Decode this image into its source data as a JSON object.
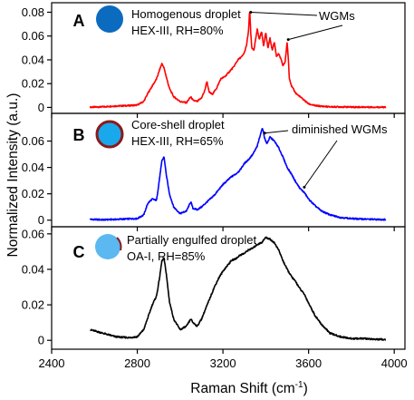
{
  "chart_data": {
    "type": "line",
    "xlabel": "Raman Shift (cm",
    "xlabel_sup": "-1",
    "xlabel_close": ")",
    "ylabel": "Normalized Intensity (a.u.)",
    "xlim": [
      2400,
      4050
    ],
    "x_ticks": [
      "2400",
      "2800",
      "3200",
      "3600",
      "4000"
    ],
    "panels": [
      {
        "letter": "A",
        "title": "Homogenous droplet",
        "subtitle": "HEX-III, RH=80%",
        "annotation": "WGMs",
        "color": "#ff0000",
        "droplet": {
          "fill": "#0a6bbf",
          "ring": ""
        },
        "ylim": [
          -0.005,
          0.088
        ],
        "y_ticks": [
          "0",
          "0.02",
          "0.04",
          "0.06",
          "0.08"
        ],
        "x": [
          2580,
          2640,
          2700,
          2760,
          2800,
          2830,
          2850,
          2870,
          2890,
          2905,
          2915,
          2925,
          2935,
          2950,
          2970,
          3000,
          3030,
          3050,
          3060,
          3080,
          3100,
          3115,
          3125,
          3135,
          3150,
          3170,
          3190,
          3210,
          3230,
          3250,
          3270,
          3290,
          3300,
          3310,
          3320,
          3325,
          3330,
          3335,
          3345,
          3360,
          3370,
          3380,
          3390,
          3400,
          3410,
          3420,
          3430,
          3440,
          3450,
          3460,
          3470,
          3480,
          3490,
          3495,
          3500,
          3505,
          3510,
          3520,
          3540,
          3560,
          3580,
          3600,
          3630,
          3660,
          3700,
          3750,
          3800,
          3860,
          3920,
          3960
        ],
        "y": [
          0.0002,
          0.0005,
          0.0012,
          0.0015,
          0.002,
          0.005,
          0.012,
          0.018,
          0.024,
          0.032,
          0.037,
          0.033,
          0.026,
          0.016,
          0.009,
          0.005,
          0.004,
          0.009,
          0.006,
          0.005,
          0.008,
          0.014,
          0.022,
          0.013,
          0.011,
          0.016,
          0.024,
          0.026,
          0.03,
          0.034,
          0.04,
          0.043,
          0.046,
          0.052,
          0.065,
          0.082,
          0.062,
          0.05,
          0.048,
          0.066,
          0.057,
          0.064,
          0.052,
          0.063,
          0.05,
          0.058,
          0.048,
          0.055,
          0.043,
          0.045,
          0.041,
          0.035,
          0.038,
          0.046,
          0.055,
          0.042,
          0.025,
          0.018,
          0.012,
          0.009,
          0.006,
          0.003,
          0.0015,
          0.001,
          0.0005,
          0.0005,
          0.0003,
          0.0003,
          0.0002,
          0.0002
        ]
      },
      {
        "letter": "B",
        "title": "Core-shell droplet",
        "subtitle": "HEX-III, RH=65%",
        "annotation": "diminished WGMs",
        "color": "#0000ff",
        "droplet": {
          "fill": "#1aa8ec",
          "ring": "#8b1a1a"
        },
        "ylim": [
          -0.005,
          0.081
        ],
        "y_ticks": [
          "0",
          "0.02",
          "0.04",
          "0.06"
        ],
        "x": [
          2580,
          2640,
          2700,
          2760,
          2800,
          2830,
          2850,
          2870,
          2890,
          2905,
          2915,
          2925,
          2935,
          2950,
          2970,
          3000,
          3030,
          3050,
          3060,
          3080,
          3100,
          3120,
          3140,
          3160,
          3180,
          3200,
          3220,
          3240,
          3260,
          3280,
          3300,
          3320,
          3340,
          3360,
          3375,
          3385,
          3395,
          3405,
          3420,
          3440,
          3460,
          3480,
          3500,
          3520,
          3540,
          3560,
          3580,
          3600,
          3630,
          3660,
          3700,
          3750,
          3800,
          3860,
          3920,
          3960
        ],
        "y": [
          0.0006,
          0.0003,
          0.0006,
          0.001,
          0.0012,
          0.004,
          0.013,
          0.016,
          0.015,
          0.033,
          0.045,
          0.048,
          0.035,
          0.02,
          0.01,
          0.005,
          0.007,
          0.014,
          0.009,
          0.008,
          0.01,
          0.013,
          0.016,
          0.019,
          0.023,
          0.027,
          0.03,
          0.033,
          0.035,
          0.038,
          0.043,
          0.046,
          0.05,
          0.056,
          0.065,
          0.07,
          0.062,
          0.058,
          0.063,
          0.06,
          0.055,
          0.048,
          0.04,
          0.035,
          0.029,
          0.024,
          0.021,
          0.016,
          0.011,
          0.007,
          0.004,
          0.002,
          0.0012,
          0.0008,
          0.0005,
          0.0005
        ]
      },
      {
        "letter": "C",
        "title": "Partially engulfed droplet",
        "subtitle": "OA-I, RH=85%",
        "annotation": "",
        "color": "#000000",
        "droplet": {
          "fill": "#5bb8f0",
          "ring": ""
        },
        "ylim": [
          -0.005,
          0.064
        ],
        "y_ticks": [
          "0",
          "0.02",
          "0.04",
          "0.06"
        ],
        "x": [
          2580,
          2640,
          2700,
          2760,
          2800,
          2830,
          2850,
          2870,
          2890,
          2905,
          2915,
          2925,
          2935,
          2950,
          2970,
          3000,
          3030,
          3050,
          3060,
          3080,
          3100,
          3120,
          3140,
          3160,
          3180,
          3200,
          3220,
          3240,
          3260,
          3280,
          3300,
          3320,
          3340,
          3360,
          3380,
          3400,
          3420,
          3440,
          3460,
          3480,
          3500,
          3520,
          3540,
          3560,
          3580,
          3600,
          3630,
          3660,
          3700,
          3750,
          3800,
          3860,
          3920,
          3960
        ],
        "y": [
          0.006,
          0.004,
          0.002,
          0.0015,
          0.002,
          0.006,
          0.013,
          0.02,
          0.025,
          0.036,
          0.045,
          0.046,
          0.038,
          0.022,
          0.012,
          0.006,
          0.008,
          0.012,
          0.01,
          0.008,
          0.012,
          0.018,
          0.024,
          0.03,
          0.035,
          0.039,
          0.042,
          0.045,
          0.046,
          0.048,
          0.049,
          0.051,
          0.052,
          0.054,
          0.055,
          0.058,
          0.057,
          0.055,
          0.051,
          0.045,
          0.04,
          0.036,
          0.033,
          0.029,
          0.026,
          0.021,
          0.014,
          0.009,
          0.004,
          0.002,
          0.001,
          0.001,
          0.0005,
          0.0005
        ]
      }
    ]
  }
}
